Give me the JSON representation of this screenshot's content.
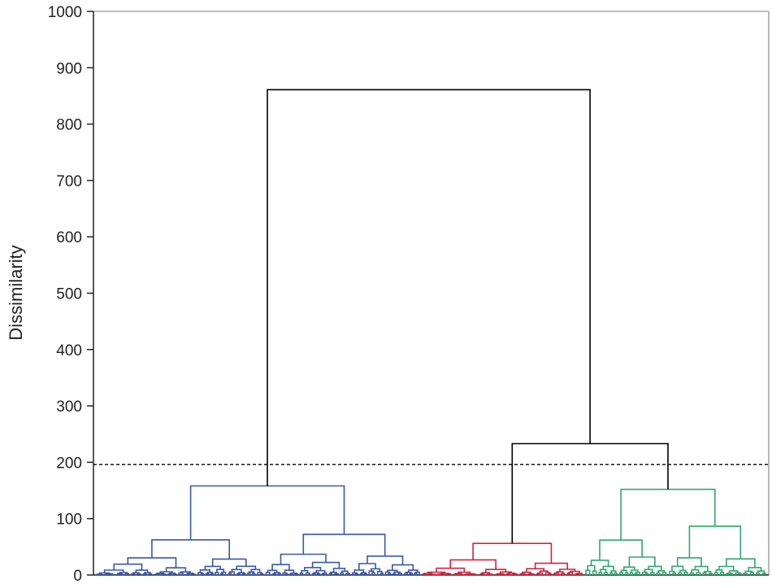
{
  "chart_data": {
    "type": "dendrogram",
    "ylabel": "Dissimilarity",
    "ylim": [
      0,
      1000
    ],
    "yticks": [
      0,
      100,
      200,
      300,
      400,
      500,
      600,
      700,
      800,
      900,
      1000
    ],
    "cut_line": {
      "y": 196,
      "style": "dashed"
    },
    "colors": {
      "cluster_blue": "#3a58a8",
      "cluster_red": "#d8213f",
      "cluster_green": "#2ea872",
      "top_links": "#000000",
      "frame": "#bbbbbb"
    },
    "clusters": [
      {
        "color": "cluster_blue",
        "leaves": 80,
        "height": 158
      },
      {
        "color": "cluster_red",
        "leaves": 40,
        "height": 56
      },
      {
        "color": "cluster_green",
        "leaves": 45,
        "height": 152
      }
    ],
    "top_merges": [
      {
        "joins": [
          "cluster_red",
          "cluster_green"
        ],
        "height": 233
      },
      {
        "joins": [
          "cluster_blue",
          "red+green"
        ],
        "height": 861
      }
    ]
  }
}
